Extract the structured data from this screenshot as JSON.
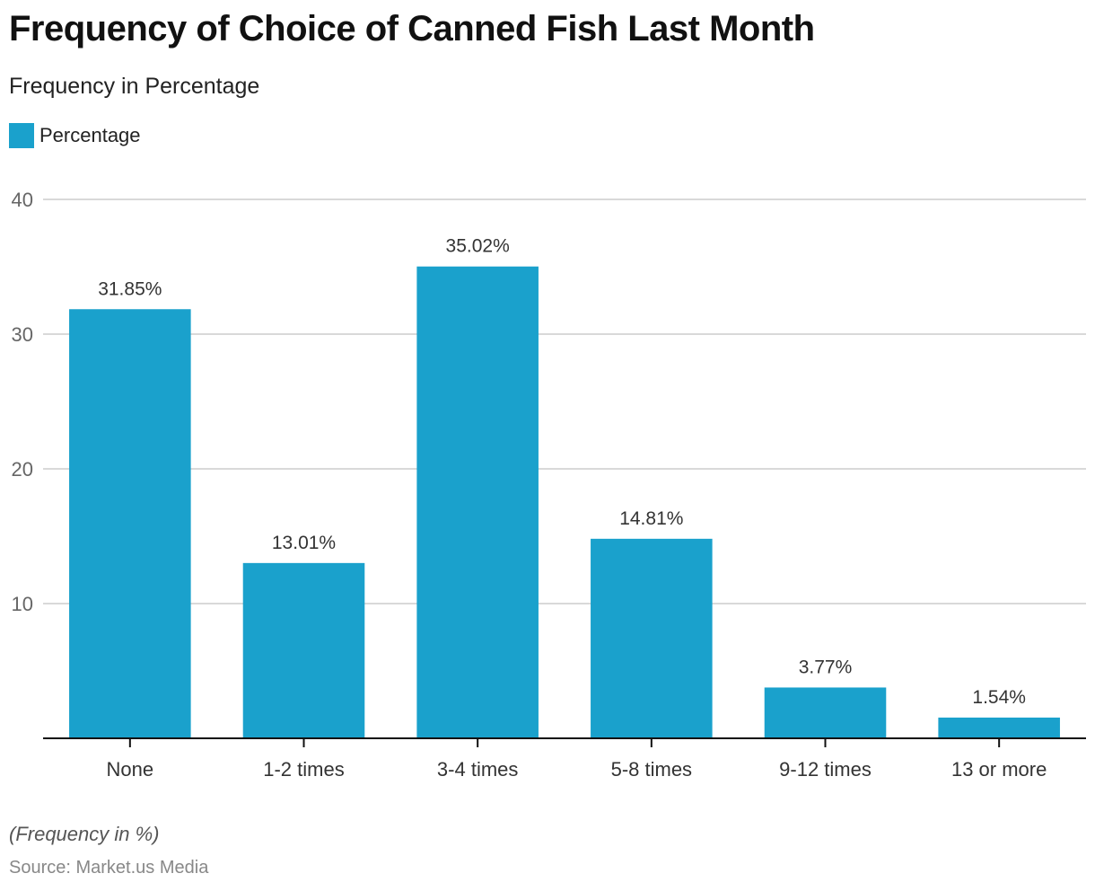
{
  "header": {
    "title": "Frequency of Choice of Canned Fish Last Month",
    "subtitle": "Frequency in Percentage"
  },
  "legend": {
    "label": "Percentage",
    "color": "#1aa1cc"
  },
  "footer": {
    "note": "(Frequency in %)",
    "source": "Source: Market.us Media"
  },
  "chart_data": {
    "type": "bar",
    "title": "Frequency of Choice of Canned Fish Last Month",
    "subtitle": "Frequency in Percentage",
    "xlabel": "",
    "ylabel": "",
    "categories": [
      "None",
      "1-2 times",
      "3-4 times",
      "5-8 times",
      "9-12 times",
      "13 or more"
    ],
    "series": [
      {
        "name": "Percentage",
        "color": "#1aa1cc",
        "values": [
          31.85,
          13.01,
          35.02,
          14.81,
          3.77,
          1.54
        ],
        "labels": [
          "31.85%",
          "13.01%",
          "35.02%",
          "14.81%",
          "3.77%",
          "1.54%"
        ]
      }
    ],
    "ylim": [
      0,
      40
    ],
    "yticks": [
      10,
      20,
      30,
      40
    ],
    "ytick_labels": [
      "10",
      "20",
      "30",
      "40"
    ],
    "grid": true,
    "legend_position": "top-left"
  }
}
